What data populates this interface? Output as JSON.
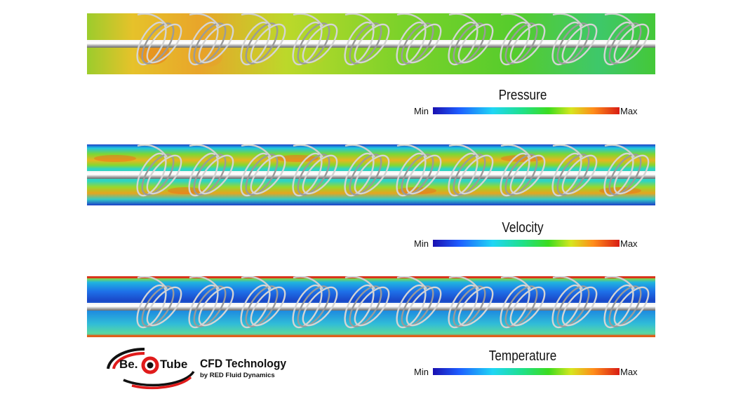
{
  "legends": {
    "pressure": {
      "title": "Pressure",
      "min": "Min",
      "max": "Max"
    },
    "velocity": {
      "title": "Velocity",
      "min": "Min",
      "max": "Max"
    },
    "temperature": {
      "title": "Temperature",
      "min": "Min",
      "max": "Max"
    }
  },
  "colormap": [
    "#1a10b0",
    "#1e5dff",
    "#1fd6f5",
    "#1fe08a",
    "#3cdc1e",
    "#d6e61e",
    "#ff8c1a",
    "#d81c14"
  ],
  "panels": {
    "pressure": {
      "field_colors": [
        "#e8b02a",
        "#c8d82a",
        "#8fd42a",
        "#62cf2a",
        "#4fca2e"
      ],
      "accent": "#e62a14"
    },
    "velocity": {
      "field_colors": [
        "#1f8be0",
        "#2fd0c8",
        "#6edd32",
        "#e7c51f",
        "#ee7a1a"
      ],
      "accent": "#e03214"
    },
    "temperature": {
      "field_colors": [
        "#1f9fd6",
        "#1e6be8",
        "#1a44c8",
        "#30c6d6",
        "#7ed84c"
      ],
      "accent": "#e02814"
    }
  },
  "logo": {
    "be": "Be.",
    "tube": "Tube",
    "title": "CFD Technology",
    "subtitle": "by RED Fluid Dynamics",
    "colors": {
      "red": "#e01b1b",
      "dark": "#111111"
    }
  }
}
